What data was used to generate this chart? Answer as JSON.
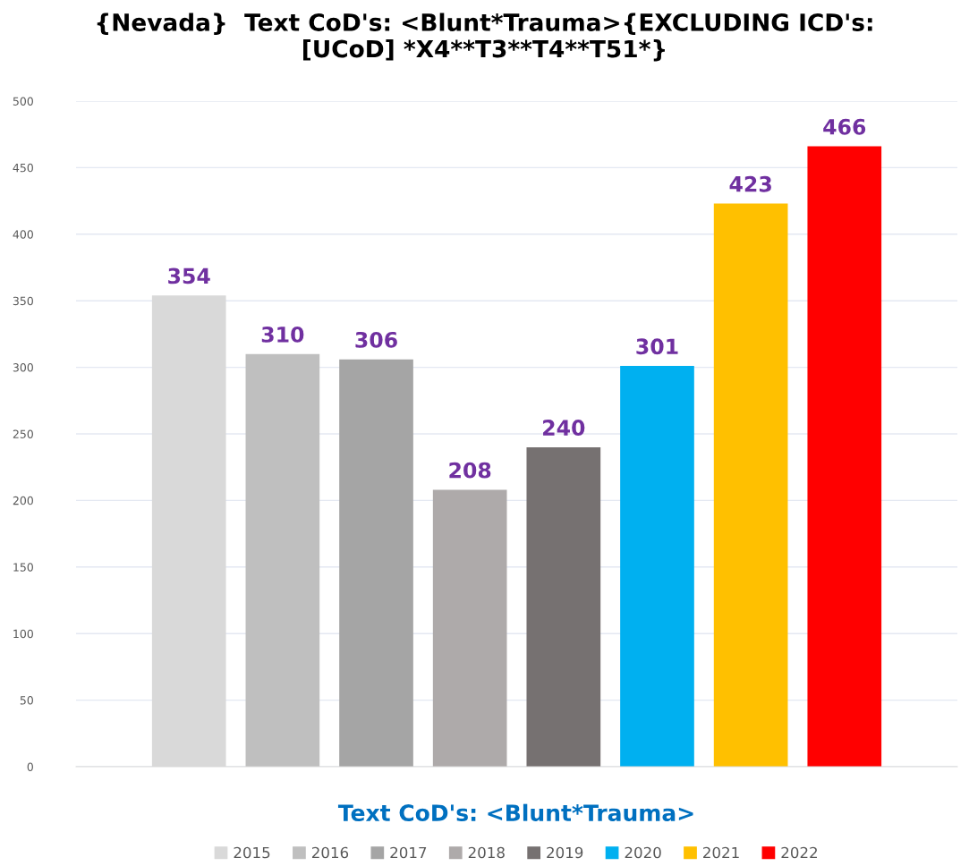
{
  "chart_data": {
    "type": "bar",
    "title": "{Nevada}  Text CoD's: <Blunt*Trauma>{EXCLUDING ICD's:\n[UCoD] *X4**T3**T4**T51*}",
    "categories": [
      null
    ],
    "xlabel": "Text CoD's: <Blunt*Trauma>",
    "series": [
      {
        "name": "2015",
        "color": "#d9d9d9",
        "values": [
          354
        ]
      },
      {
        "name": "2016",
        "color": "#bfbfbf",
        "values": [
          310
        ]
      },
      {
        "name": "2017",
        "color": "#a5a5a5",
        "values": [
          306
        ]
      },
      {
        "name": "2018",
        "color": "#aeaaaa",
        "values": [
          208
        ]
      },
      {
        "name": "2019",
        "color": "#767171",
        "values": [
          240
        ]
      },
      {
        "name": "2020",
        "color": "#00b0f0",
        "values": [
          301
        ]
      },
      {
        "name": "2021",
        "color": "#ffc000",
        "values": [
          423
        ]
      },
      {
        "name": "2022",
        "color": "#ff0000",
        "values": [
          466
        ]
      }
    ],
    "ylim": [
      0,
      500
    ],
    "yticks": [
      0,
      50,
      100,
      150,
      200,
      250,
      300,
      350,
      400,
      450,
      500
    ],
    "grid": "y",
    "legend": "bottom",
    "data_labels": true
  }
}
